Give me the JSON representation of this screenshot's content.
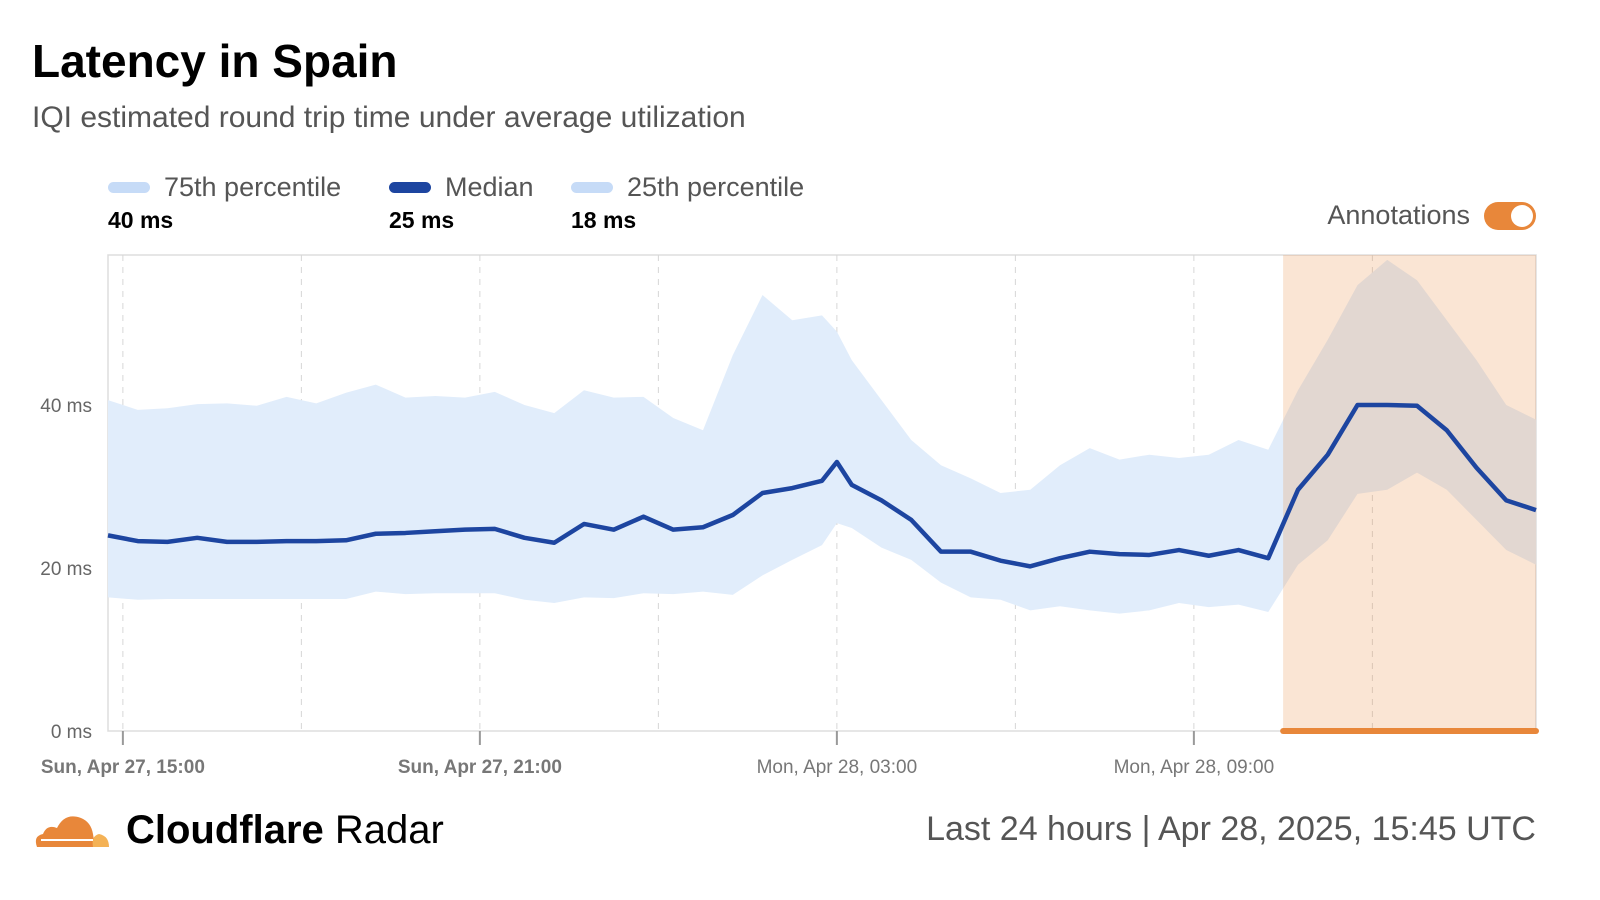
{
  "header": {
    "title": "Latency in Spain",
    "subtitle": "IQI estimated round trip time under average utilization"
  },
  "legend": [
    {
      "label": "75th percentile",
      "value": "40 ms",
      "color": "#c6dbf7"
    },
    {
      "label": "Median",
      "value": "25 ms",
      "color": "#1d45a0"
    },
    {
      "label": "25th percentile",
      "value": "18 ms",
      "color": "#c6dbf7"
    }
  ],
  "annotations": {
    "label": "Annotations",
    "enabled": true,
    "color": "#e8873a"
  },
  "footer": {
    "brand_bold": "Cloudflare",
    "brand_light": "Radar",
    "range": "Last 24 hours",
    "separator": "|",
    "timestamp": "Apr 28, 2025, 15:45 UTC"
  },
  "chart_data": {
    "type": "area",
    "x_unit": "hours since Sun, Apr 27, 15:00",
    "xlim": [
      -0.25,
      23.75
    ],
    "ylim": [
      0,
      58.4
    ],
    "y_ticks": [
      {
        "value": 0,
        "label": "0 ms"
      },
      {
        "value": 20,
        "label": "20 ms"
      },
      {
        "value": 40,
        "label": "40 ms"
      }
    ],
    "x_ticks": [
      {
        "value": 0,
        "label": "Sun, Apr 27, 15:00",
        "bold": true
      },
      {
        "value": 6,
        "label": "Sun, Apr 27, 21:00",
        "bold": true
      },
      {
        "value": 12,
        "label": "Mon, Apr 28, 03:00",
        "bold": false
      },
      {
        "value": 18,
        "label": "Mon, Apr 28, 09:00",
        "bold": false
      }
    ],
    "gridlines_x": [
      0,
      3,
      6,
      9,
      12,
      15,
      18,
      21
    ],
    "annotation_range": [
      19.5,
      23.75
    ],
    "x": [
      -0.25,
      0.25,
      0.75,
      1.25,
      1.75,
      2.25,
      2.75,
      3.25,
      3.75,
      4.25,
      4.75,
      5.25,
      5.75,
      6.25,
      6.75,
      7.25,
      7.75,
      8.25,
      8.75,
      9.25,
      9.75,
      10.25,
      10.75,
      11.25,
      11.75,
      12.0,
      12.25,
      12.75,
      13.25,
      13.75,
      14.25,
      14.75,
      15.25,
      15.75,
      16.25,
      16.75,
      17.25,
      17.75,
      18.25,
      18.75,
      19.25,
      19.75,
      20.25,
      20.75,
      21.25,
      21.75,
      22.25,
      22.75,
      23.25,
      23.75
    ],
    "series": [
      {
        "name": "75th percentile",
        "values": [
          40.6,
          39.4,
          39.6,
          40.1,
          40.2,
          39.9,
          41.0,
          40.2,
          41.5,
          42.5,
          40.9,
          41.1,
          40.9,
          41.6,
          40.0,
          39.0,
          41.8,
          40.9,
          41.0,
          38.4,
          36.9,
          46.1,
          53.5,
          50.4,
          51.0,
          49.0,
          45.5,
          40.6,
          35.7,
          32.6,
          31.0,
          29.2,
          29.6,
          32.6,
          34.7,
          33.3,
          33.9,
          33.5,
          33.9,
          35.7,
          34.5,
          41.8,
          48.0,
          54.7,
          57.8,
          55.3,
          50.4,
          45.5,
          40.0,
          38.2
        ]
      },
      {
        "name": "Median",
        "values": [
          24.0,
          23.3,
          23.2,
          23.7,
          23.2,
          23.2,
          23.3,
          23.3,
          23.4,
          24.2,
          24.3,
          24.5,
          24.7,
          24.8,
          23.7,
          23.1,
          25.4,
          24.7,
          26.3,
          24.7,
          25.0,
          26.5,
          29.2,
          29.8,
          30.7,
          33.0,
          30.2,
          28.3,
          25.9,
          22.0,
          22.0,
          20.9,
          20.2,
          21.2,
          22.0,
          21.7,
          21.6,
          22.2,
          21.5,
          22.2,
          21.2,
          29.6,
          33.9,
          40.0,
          40.0,
          39.9,
          36.9,
          32.3,
          28.3,
          27.1
        ]
      },
      {
        "name": "25th percentile",
        "values": [
          16.4,
          16.1,
          16.2,
          16.2,
          16.2,
          16.2,
          16.2,
          16.2,
          16.2,
          17.1,
          16.8,
          16.9,
          16.9,
          16.9,
          16.1,
          15.7,
          16.4,
          16.3,
          16.9,
          16.8,
          17.1,
          16.7,
          19.1,
          21.0,
          22.8,
          25.5,
          24.9,
          22.5,
          21.0,
          18.2,
          16.4,
          16.1,
          14.8,
          15.3,
          14.8,
          14.4,
          14.8,
          15.7,
          15.2,
          15.5,
          14.6,
          20.4,
          23.4,
          29.1,
          29.6,
          31.7,
          29.6,
          25.9,
          22.2,
          20.4
        ]
      }
    ]
  }
}
